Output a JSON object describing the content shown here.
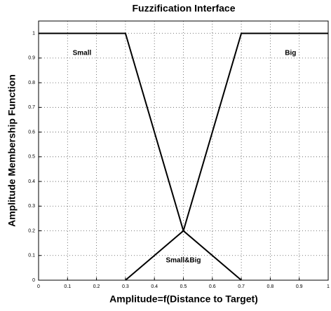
{
  "chart_data": {
    "type": "line",
    "title": "Fuzzification Interface",
    "x_label": "Amplitude=f(Distance to Target)",
    "y_label": "Amplitude Membership Function",
    "series": [
      {
        "name": "Small",
        "color": "#000000",
        "x": [
          0,
          0.3,
          0.5,
          0.7
        ],
        "values": [
          1,
          1,
          0.2,
          0
        ]
      },
      {
        "name": "Big",
        "color": "#000000",
        "x": [
          0.3,
          0.5,
          0.7,
          1
        ],
        "values": [
          0,
          0.2,
          1,
          1
        ]
      }
    ],
    "annotations": [
      "Small&Big"
    ],
    "xlim": [
      0,
      1
    ],
    "ylim": [
      0,
      1.05
    ],
    "xticks": [
      0,
      0.1,
      0.2,
      0.3,
      0.4,
      0.5,
      0.6,
      0.7,
      0.8,
      0.9,
      1
    ],
    "yticks": [
      0,
      0.1,
      0.2,
      0.3,
      0.4,
      0.5,
      0.6,
      0.7,
      0.8,
      0.9,
      1
    ],
    "grid": true
  }
}
